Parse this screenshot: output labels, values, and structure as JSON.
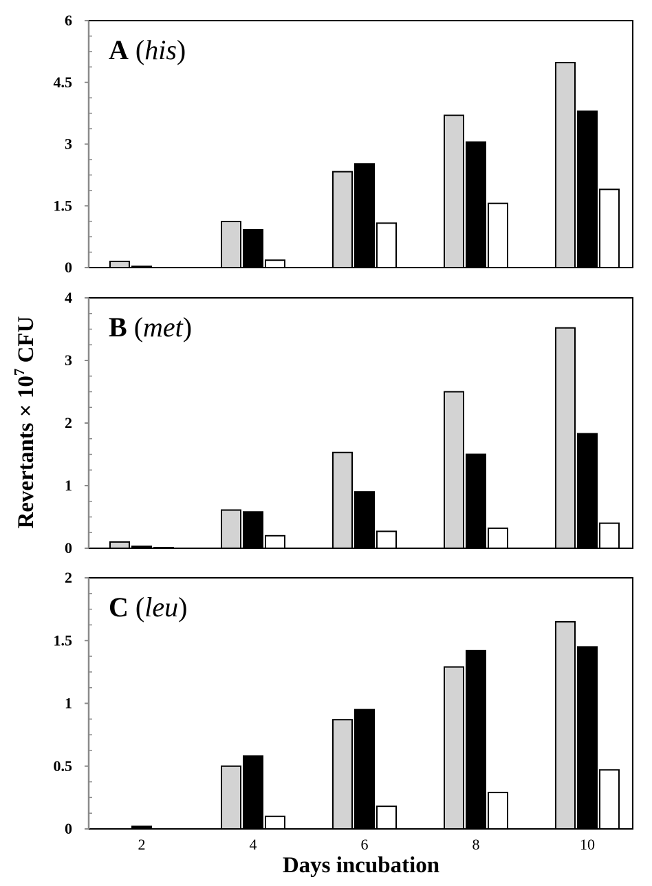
{
  "y_axis_label": "Revertants × 10",
  "y_axis_label_sup": "7",
  "y_axis_label_suffix": " CFU",
  "x_axis_label": "Days incubation",
  "chart_data": [
    {
      "type": "bar",
      "panel_letter": "A",
      "panel_gene": "his",
      "categories": [
        "2",
        "4",
        "6",
        "8",
        "10"
      ],
      "series": [
        {
          "color": "#d3d3d3",
          "values": [
            0.15,
            1.12,
            2.33,
            3.7,
            4.98
          ]
        },
        {
          "color": "#000000",
          "values": [
            0.03,
            0.92,
            2.52,
            3.05,
            3.8
          ]
        },
        {
          "color": "#ffffff",
          "values": [
            0.0,
            0.18,
            1.08,
            1.56,
            1.9
          ]
        }
      ],
      "ylim": [
        0,
        6
      ],
      "yticks": [
        "0",
        "1.5",
        "3",
        "4.5",
        "6"
      ],
      "ytick_values": [
        0,
        1.5,
        3,
        4.5,
        6
      ],
      "show_x_ticks": false
    },
    {
      "type": "bar",
      "panel_letter": "B",
      "panel_gene": "met",
      "categories": [
        "2",
        "4",
        "6",
        "8",
        "10"
      ],
      "series": [
        {
          "color": "#d3d3d3",
          "values": [
            0.1,
            0.61,
            1.53,
            2.5,
            3.52
          ]
        },
        {
          "color": "#000000",
          "values": [
            0.03,
            0.58,
            0.9,
            1.5,
            1.83
          ]
        },
        {
          "color": "#ffffff",
          "values": [
            0.01,
            0.2,
            0.27,
            0.32,
            0.4
          ]
        }
      ],
      "ylim": [
        0,
        4
      ],
      "yticks": [
        "0",
        "1",
        "2",
        "3",
        "4"
      ],
      "ytick_values": [
        0,
        1,
        2,
        3,
        4
      ],
      "show_x_ticks": false
    },
    {
      "type": "bar",
      "panel_letter": "C",
      "panel_gene": "leu",
      "categories": [
        "2",
        "4",
        "6",
        "8",
        "10"
      ],
      "series": [
        {
          "color": "#d3d3d3",
          "values": [
            0.0,
            0.5,
            0.87,
            1.29,
            1.65
          ]
        },
        {
          "color": "#000000",
          "values": [
            0.02,
            0.58,
            0.95,
            1.42,
            1.45
          ]
        },
        {
          "color": "#ffffff",
          "values": [
            0.0,
            0.1,
            0.18,
            0.29,
            0.47
          ]
        }
      ],
      "ylim": [
        0,
        2
      ],
      "yticks": [
        "0",
        "0.5",
        "1",
        "1.5",
        "2"
      ],
      "ytick_values": [
        0,
        0.5,
        1,
        1.5,
        2
      ],
      "show_x_ticks": true
    }
  ]
}
